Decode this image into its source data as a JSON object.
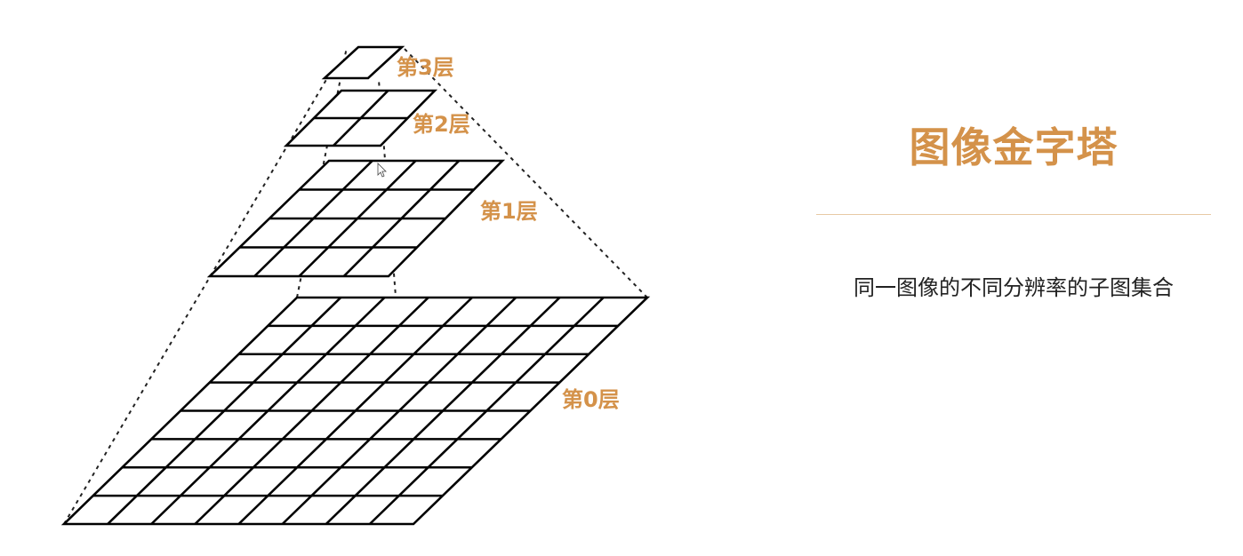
{
  "diagram": {
    "levels": [
      {
        "label": "第3层",
        "grid": 1
      },
      {
        "label": "第2层",
        "grid": 2
      },
      {
        "label": "第1层",
        "grid": 4
      },
      {
        "label": "第0层",
        "grid": 8
      }
    ]
  },
  "panel": {
    "title": "图像金字塔",
    "subtitle": "同一图像的不同分辨率的子图集合"
  },
  "colors": {
    "accent": "#d4924a",
    "divider": "#e8c9a4",
    "grid": "#000000",
    "text": "#222222"
  }
}
